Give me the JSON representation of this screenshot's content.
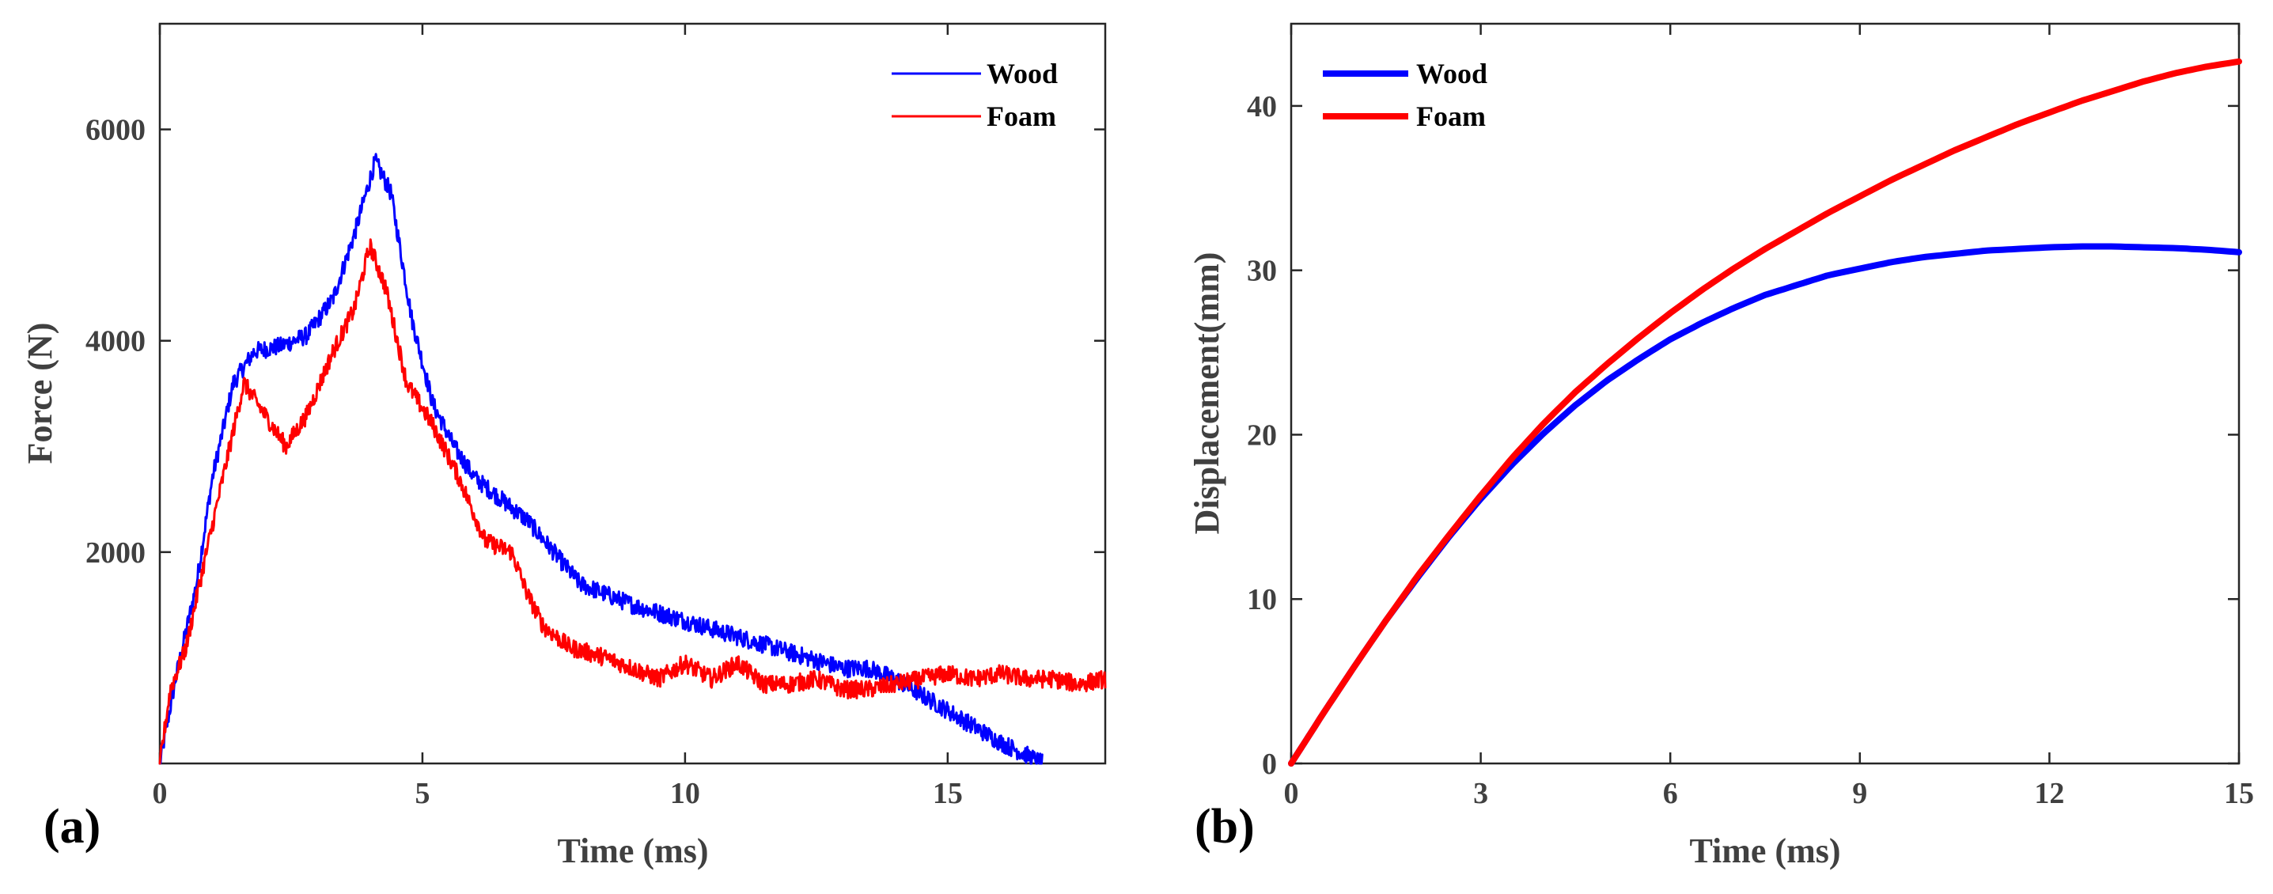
{
  "chart_data": [
    {
      "panel_label": "(a)",
      "type": "line",
      "title": "",
      "xlabel": "Time (ms)",
      "ylabel": "Force (N)",
      "xlim": [
        0,
        18
      ],
      "ylim": [
        0,
        7000
      ],
      "xticks": [
        0,
        5,
        10,
        15
      ],
      "xtick_labels": [
        "0",
        "5",
        "10",
        "15"
      ],
      "yticks": [
        2000,
        4000,
        6000
      ],
      "ytick_labels": [
        "2000",
        "4000",
        "6000"
      ],
      "legend": "top-right",
      "grid": false,
      "noisy": true,
      "series": [
        {
          "name": "Wood",
          "color": "#0000ff",
          "x": [
            0,
            0.3,
            0.7,
            1,
            1.4,
            1.8,
            2.3,
            2.8,
            3.3,
            3.7,
            4.1,
            4.4,
            4.8,
            5.2,
            5.6,
            6,
            6.5,
            7,
            7.5,
            8,
            8.5,
            9,
            10,
            11,
            12,
            13,
            13.5,
            14,
            14.5,
            15,
            15.5,
            16,
            16.5,
            16.8
          ],
          "y": [
            0,
            800,
            1700,
            2700,
            3600,
            3900,
            3950,
            4050,
            4400,
            5000,
            5700,
            5400,
            4200,
            3400,
            3000,
            2700,
            2500,
            2300,
            2000,
            1700,
            1600,
            1500,
            1350,
            1200,
            1050,
            900,
            900,
            800,
            650,
            500,
            350,
            200,
            80,
            0
          ]
        },
        {
          "name": "Foam",
          "color": "#ff0000",
          "x": [
            0,
            0.2,
            0.5,
            0.8,
            1.2,
            1.6,
            2,
            2.4,
            2.8,
            3.3,
            3.7,
            4,
            4.3,
            4.7,
            5.2,
            5.7,
            6.2,
            6.7,
            7,
            7.3,
            7.8,
            8.5,
            9,
            9.5,
            10,
            10.5,
            11,
            11.5,
            12,
            12.5,
            13,
            13.5,
            14,
            14.5,
            15,
            15.5,
            16,
            16.5,
            17,
            17.5,
            18
          ],
          "y": [
            0,
            700,
            1100,
            1800,
            2700,
            3600,
            3300,
            3000,
            3300,
            3900,
            4300,
            4900,
            4500,
            3600,
            3200,
            2700,
            2100,
            2000,
            1600,
            1300,
            1100,
            1000,
            900,
            800,
            950,
            800,
            950,
            750,
            750,
            800,
            700,
            700,
            750,
            800,
            850,
            800,
            850,
            800,
            800,
            750,
            800
          ]
        }
      ]
    },
    {
      "panel_label": "(b)",
      "type": "line",
      "title": "",
      "xlabel": "Time (ms)",
      "ylabel": "Displacement(mm)",
      "xlim": [
        0,
        15
      ],
      "ylim": [
        0,
        45
      ],
      "xticks": [
        0,
        3,
        6,
        9,
        12,
        15
      ],
      "xtick_labels": [
        "0",
        "3",
        "6",
        "9",
        "12",
        "15"
      ],
      "yticks": [
        0,
        10,
        20,
        30,
        40
      ],
      "ytick_labels": [
        "0",
        "10",
        "20",
        "30",
        "40"
      ],
      "legend": "top-left",
      "grid": false,
      "noisy": false,
      "series": [
        {
          "name": "Wood",
          "color": "#0000ff",
          "x": [
            0,
            0.5,
            1,
            1.5,
            2,
            2.5,
            3,
            3.5,
            4,
            4.5,
            5,
            5.5,
            6,
            6.5,
            7,
            7.5,
            8,
            8.5,
            9,
            9.5,
            10,
            10.5,
            11,
            11.5,
            12,
            12.5,
            13,
            13.5,
            14,
            14.5,
            15
          ],
          "y": [
            0,
            3,
            5.9,
            8.7,
            11.3,
            13.8,
            16.1,
            18.2,
            20.1,
            21.8,
            23.3,
            24.6,
            25.8,
            26.8,
            27.7,
            28.5,
            29.1,
            29.7,
            30.1,
            30.5,
            30.8,
            31,
            31.2,
            31.3,
            31.4,
            31.45,
            31.45,
            31.4,
            31.35,
            31.25,
            31.1
          ]
        },
        {
          "name": "Foam",
          "color": "#ff0000",
          "x": [
            0,
            0.5,
            1,
            1.5,
            2,
            2.5,
            3,
            3.5,
            4,
            4.5,
            5,
            5.5,
            6,
            6.5,
            7,
            7.5,
            8,
            8.5,
            9,
            9.5,
            10,
            10.5,
            11,
            11.5,
            12,
            12.5,
            13,
            13.5,
            14,
            14.5,
            15
          ],
          "y": [
            0,
            3,
            5.9,
            8.7,
            11.4,
            13.9,
            16.3,
            18.6,
            20.7,
            22.6,
            24.3,
            25.9,
            27.4,
            28.8,
            30.1,
            31.3,
            32.4,
            33.5,
            34.5,
            35.5,
            36.4,
            37.3,
            38.1,
            38.9,
            39.6,
            40.3,
            40.9,
            41.5,
            42,
            42.4,
            42.7
          ]
        }
      ]
    }
  ]
}
